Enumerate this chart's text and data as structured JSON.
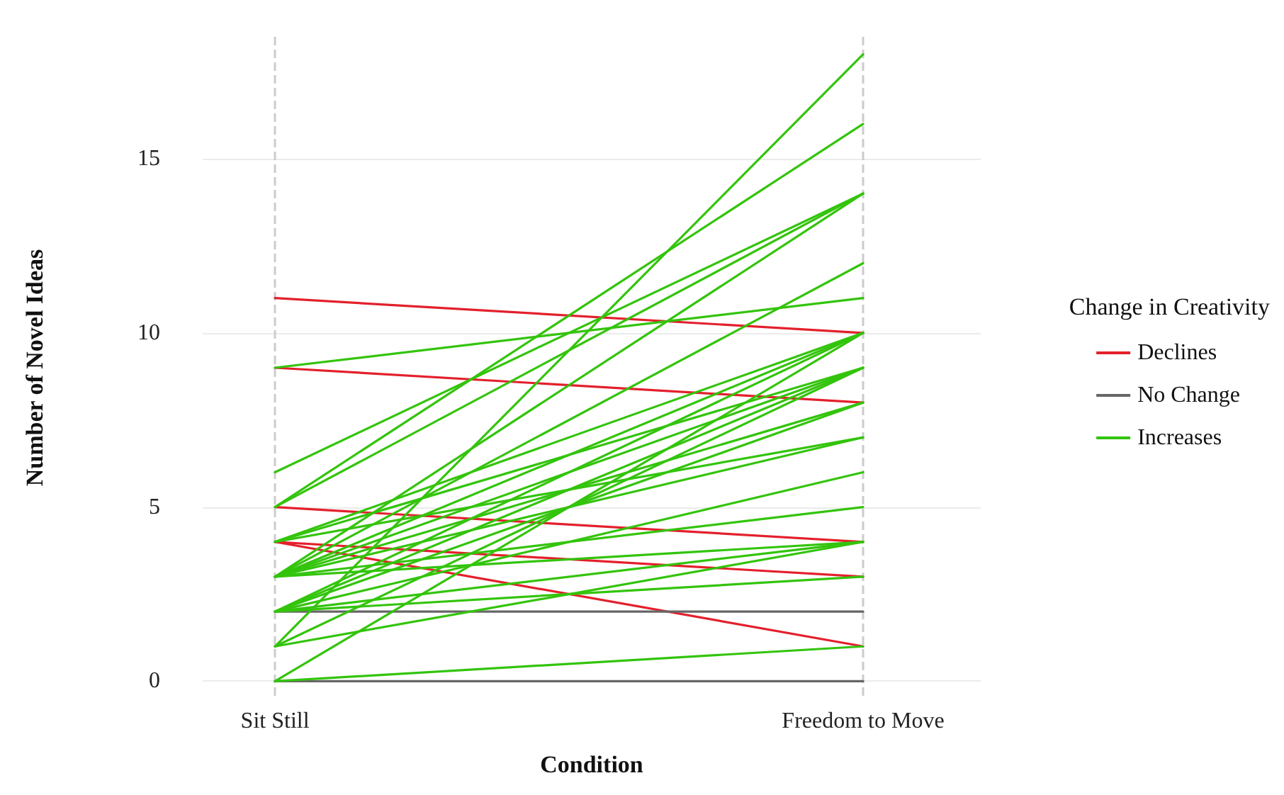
{
  "chart_data": {
    "type": "line",
    "xlabel": "Condition",
    "ylabel": "Number of Novel Ideas",
    "legend_title": "Change in Creativity",
    "categories": [
      "Sit Still",
      "Freedom to Move"
    ],
    "ylim": [
      -0.5,
      18.5
    ],
    "yticks": [
      0,
      5,
      10,
      15
    ],
    "grid": true,
    "legend": "right",
    "marker": "none",
    "line_style": "solid",
    "series": [
      {
        "name": "Declines",
        "color": "#e3202c",
        "values": [
          11,
          10
        ]
      },
      {
        "color": "#e3202c",
        "values": [
          9,
          8
        ]
      },
      {
        "color": "#e3202c",
        "values": [
          5,
          4
        ]
      },
      {
        "color": "#e3202c",
        "values": [
          4,
          3
        ]
      },
      {
        "color": "#e3202c",
        "values": [
          4,
          1
        ]
      },
      {
        "name": "No Change",
        "color": "#666666",
        "values": [
          2,
          2
        ]
      },
      {
        "color": "#666666",
        "values": [
          0,
          0
        ]
      },
      {
        "name": "Increases",
        "color": "#33c40c",
        "values": [
          9,
          11
        ]
      },
      {
        "color": "#33c40c",
        "values": [
          6,
          14
        ]
      },
      {
        "color": "#33c40c",
        "values": [
          5,
          16
        ]
      },
      {
        "color": "#33c40c",
        "values": [
          5,
          14
        ]
      },
      {
        "color": "#33c40c",
        "values": [
          1,
          18
        ]
      },
      {
        "color": "#33c40c",
        "values": [
          3,
          14
        ]
      },
      {
        "color": "#33c40c",
        "values": [
          3,
          12
        ]
      },
      {
        "color": "#33c40c",
        "values": [
          3,
          10
        ]
      },
      {
        "color": "#33c40c",
        "values": [
          3,
          9
        ]
      },
      {
        "color": "#33c40c",
        "values": [
          3,
          8
        ]
      },
      {
        "color": "#33c40c",
        "values": [
          3,
          7
        ]
      },
      {
        "color": "#33c40c",
        "values": [
          3,
          5
        ]
      },
      {
        "color": "#33c40c",
        "values": [
          3,
          4
        ]
      },
      {
        "color": "#33c40c",
        "values": [
          4,
          10
        ]
      },
      {
        "color": "#33c40c",
        "values": [
          4,
          9
        ]
      },
      {
        "color": "#33c40c",
        "values": [
          4,
          7
        ]
      },
      {
        "color": "#33c40c",
        "values": [
          2,
          10
        ]
      },
      {
        "color": "#33c40c",
        "values": [
          2,
          9
        ]
      },
      {
        "color": "#33c40c",
        "values": [
          2,
          8
        ]
      },
      {
        "color": "#33c40c",
        "values": [
          2,
          6
        ]
      },
      {
        "color": "#33c40c",
        "values": [
          2,
          4
        ]
      },
      {
        "color": "#33c40c",
        "values": [
          2,
          3
        ]
      },
      {
        "color": "#33c40c",
        "values": [
          1,
          9
        ]
      },
      {
        "color": "#33c40c",
        "values": [
          1,
          4
        ]
      },
      {
        "color": "#33c40c",
        "values": [
          0,
          10
        ]
      },
      {
        "color": "#33c40c",
        "values": [
          0,
          1
        ]
      }
    ]
  }
}
